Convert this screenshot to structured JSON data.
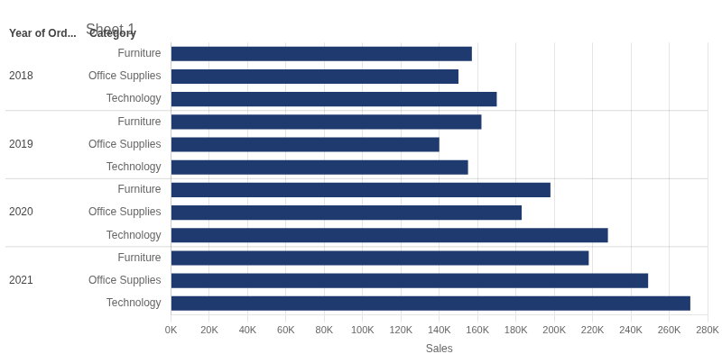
{
  "chart_data": {
    "type": "bar",
    "orientation": "horizontal",
    "title": "Sheet 1",
    "xlabel": "Sales",
    "group_title": "Year of Ord...",
    "ylabel": "Category",
    "groups": [
      "2018",
      "2018",
      "2018",
      "2019",
      "2019",
      "2019",
      "2020",
      "2020",
      "2020",
      "2021",
      "2021",
      "2021"
    ],
    "categories": [
      "Furniture",
      "Office Supplies",
      "Technology",
      "Furniture",
      "Office Supplies",
      "Technology",
      "Furniture",
      "Office Supplies",
      "Technology",
      "Furniture",
      "Office Supplies",
      "Technology"
    ],
    "values": [
      157000,
      150000,
      170000,
      162000,
      140000,
      155000,
      198000,
      183000,
      228000,
      218000,
      249000,
      271000
    ],
    "color": "#1F3A6E",
    "xlim": [
      0,
      280000
    ],
    "xticks": [
      {
        "value": 0,
        "label": "0K"
      },
      {
        "value": 20000,
        "label": "20K"
      },
      {
        "value": 40000,
        "label": "40K"
      },
      {
        "value": 60000,
        "label": "60K"
      },
      {
        "value": 80000,
        "label": "80K"
      },
      {
        "value": 100000,
        "label": "100K"
      },
      {
        "value": 120000,
        "label": "120K"
      },
      {
        "value": 140000,
        "label": "140K"
      },
      {
        "value": 160000,
        "label": "160K"
      },
      {
        "value": 180000,
        "label": "180K"
      },
      {
        "value": 200000,
        "label": "200K"
      },
      {
        "value": 220000,
        "label": "220K"
      },
      {
        "value": 240000,
        "label": "240K"
      },
      {
        "value": 260000,
        "label": "260K"
      },
      {
        "value": 280000,
        "label": "280K"
      }
    ],
    "grid": true
  }
}
